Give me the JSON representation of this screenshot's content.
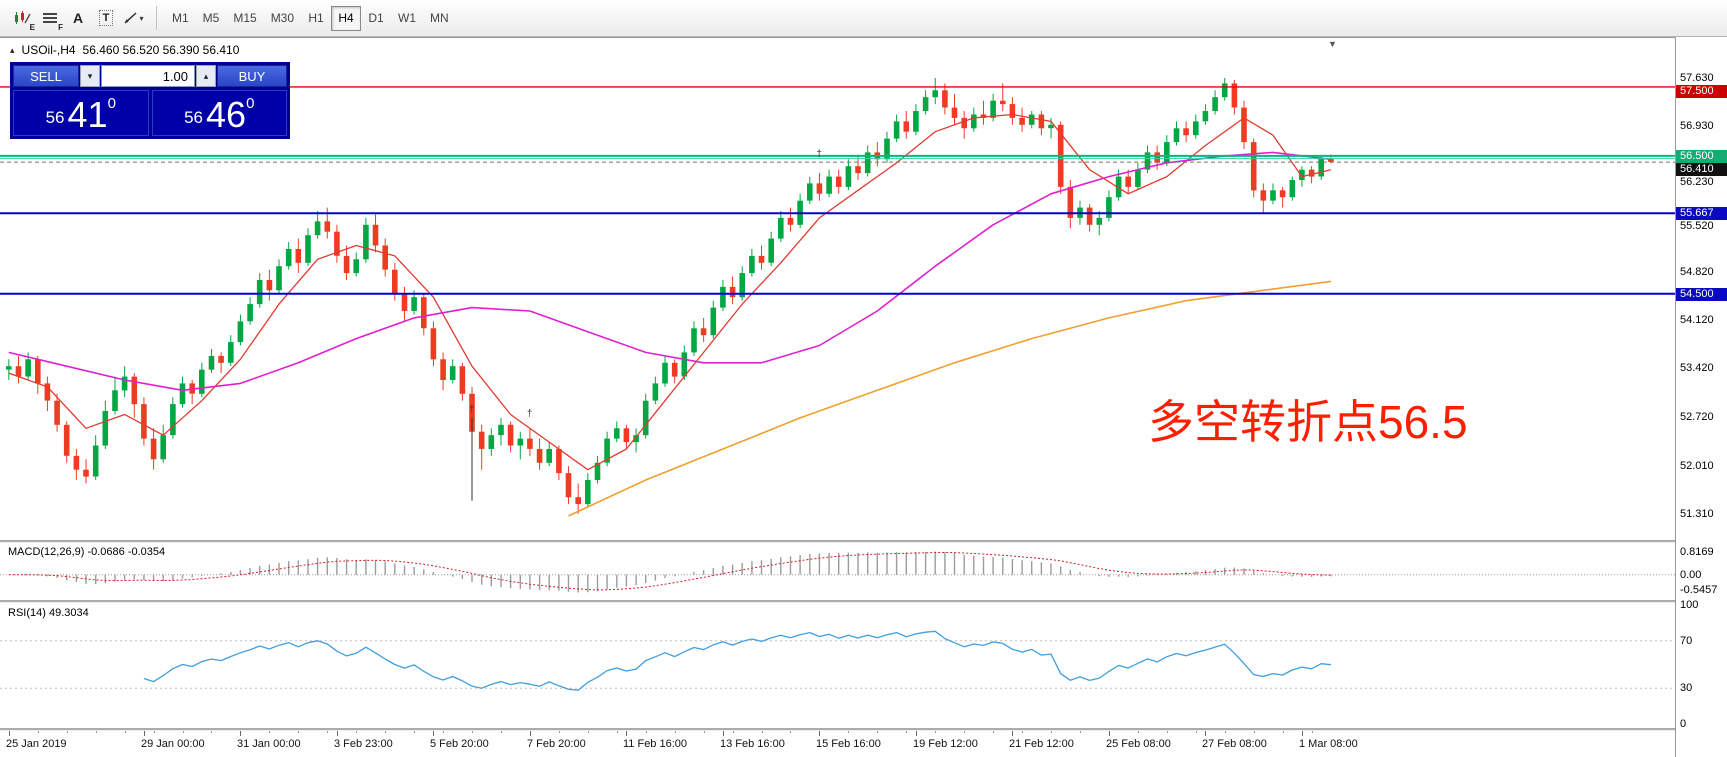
{
  "toolbar": {
    "icons": [
      {
        "name": "expert-chart-icon",
        "type": "candles",
        "badge": "E"
      },
      {
        "name": "indicator-list-icon",
        "type": "lines",
        "badge": "F"
      },
      {
        "name": "text-label-icon",
        "type": "letter",
        "glyph": "A"
      },
      {
        "name": "text-box-icon",
        "type": "boxed",
        "glyph": "T"
      },
      {
        "name": "line-tools-icon",
        "type": "trend",
        "caret": "▾"
      }
    ],
    "timeframes": [
      "M1",
      "M5",
      "M15",
      "M30",
      "H1",
      "H4",
      "D1",
      "W1",
      "MN"
    ],
    "active_timeframe": "H4"
  },
  "chart_header": {
    "toggle_glyph": "▴",
    "symbol": "USOil-,H4",
    "ohlc": "56.460 56.520 56.390 56.410"
  },
  "trade_panel": {
    "sell_label": "SELL",
    "buy_label": "BUY",
    "volume": "1.00",
    "down_glyph": "▾",
    "up_glyph": "▴",
    "bid": {
      "main": "56",
      "pips": "41",
      "sub": "0"
    },
    "ask": {
      "main": "56",
      "pips": "46",
      "sub": "0"
    }
  },
  "annotation": {
    "text": "多空转折点56.5",
    "color": "#ff1e00"
  },
  "indicators": {
    "macd_label": "MACD(12,26,9) -0.0686 -0.0354",
    "rsi_label": "RSI(14) 49.3034"
  },
  "misc": {
    "scroll_marker": "▼"
  },
  "price_scale": {
    "main": [
      {
        "text": "57.630"
      },
      {
        "text": "57.500",
        "bg": "#cc0000"
      },
      {
        "text": "56.930"
      },
      {
        "text": "56.500",
        "bg": "#15ab73"
      },
      {
        "text": "56.410",
        "bg": "#111111"
      },
      {
        "text": "56.230"
      },
      {
        "text": "55.667",
        "bg": "#0a0ac0"
      },
      {
        "text": "55.520"
      },
      {
        "text": "54.820"
      },
      {
        "text": "54.500",
        "bg": "#0a0ac0"
      },
      {
        "text": "54.120"
      },
      {
        "text": "53.420"
      },
      {
        "text": "52.720"
      },
      {
        "text": "52.010"
      },
      {
        "text": "51.310"
      }
    ],
    "macd": [
      "0.8169",
      "0.00",
      "-0.5457"
    ],
    "rsi": [
      "100",
      "70",
      "30",
      "0"
    ]
  },
  "chart_data": {
    "type": "candlestick",
    "symbol": "USOil-",
    "period": "H4",
    "up_color": "#00a843",
    "down_color": "#ee3c23",
    "price_axis": {
      "max": 58.18,
      "min": 50.93
    },
    "candle_width": 9.65,
    "left_pad": 4,
    "candles": [
      [
        53.4,
        53.55,
        53.25,
        53.45
      ],
      [
        53.45,
        53.6,
        53.2,
        53.3
      ],
      [
        53.3,
        53.65,
        53.25,
        53.55
      ],
      [
        53.55,
        53.6,
        53.05,
        53.2
      ],
      [
        53.2,
        53.3,
        52.8,
        52.95
      ],
      [
        52.95,
        53.05,
        52.5,
        52.6
      ],
      [
        52.6,
        52.65,
        52.05,
        52.15
      ],
      [
        52.15,
        52.25,
        51.8,
        51.95
      ],
      [
        51.95,
        52.1,
        51.75,
        51.85
      ],
      [
        51.85,
        52.45,
        51.8,
        52.3
      ],
      [
        52.3,
        52.95,
        52.25,
        52.8
      ],
      [
        52.8,
        53.3,
        52.75,
        53.1
      ],
      [
        53.1,
        53.45,
        53.0,
        53.3
      ],
      [
        53.3,
        53.35,
        52.7,
        52.9
      ],
      [
        52.9,
        53.0,
        52.3,
        52.4
      ],
      [
        52.4,
        52.55,
        51.95,
        52.1
      ],
      [
        52.1,
        52.6,
        52.05,
        52.45
      ],
      [
        52.45,
        53.0,
        52.4,
        52.9
      ],
      [
        52.9,
        53.3,
        52.85,
        53.2
      ],
      [
        53.2,
        53.25,
        52.9,
        53.05
      ],
      [
        53.05,
        53.5,
        53.0,
        53.4
      ],
      [
        53.4,
        53.7,
        53.35,
        53.6
      ],
      [
        53.6,
        53.65,
        53.35,
        53.5
      ],
      [
        53.5,
        53.9,
        53.45,
        53.8
      ],
      [
        53.8,
        54.2,
        53.75,
        54.1
      ],
      [
        54.1,
        54.45,
        54.05,
        54.35
      ],
      [
        54.35,
        54.8,
        54.3,
        54.7
      ],
      [
        54.7,
        54.85,
        54.4,
        54.55
      ],
      [
        54.55,
        55.0,
        54.5,
        54.9
      ],
      [
        54.9,
        55.25,
        54.85,
        55.15
      ],
      [
        55.15,
        55.3,
        54.8,
        54.95
      ],
      [
        54.95,
        55.45,
        54.9,
        55.35
      ],
      [
        55.35,
        55.7,
        55.3,
        55.55
      ],
      [
        55.55,
        55.75,
        55.3,
        55.4
      ],
      [
        55.4,
        55.5,
        54.95,
        55.05
      ],
      [
        55.05,
        55.2,
        54.7,
        54.8
      ],
      [
        54.8,
        55.1,
        54.75,
        55.0
      ],
      [
        55.0,
        55.6,
        54.95,
        55.5
      ],
      [
        55.5,
        55.65,
        55.1,
        55.2
      ],
      [
        55.2,
        55.3,
        54.75,
        54.85
      ],
      [
        54.85,
        54.95,
        54.4,
        54.5
      ],
      [
        54.5,
        54.6,
        54.1,
        54.25
      ],
      [
        54.25,
        54.55,
        54.2,
        54.45
      ],
      [
        54.45,
        54.5,
        53.9,
        54.0
      ],
      [
        54.0,
        54.1,
        53.45,
        53.55
      ],
      [
        53.55,
        53.65,
        53.1,
        53.25
      ],
      [
        53.25,
        53.55,
        53.2,
        53.45
      ],
      [
        53.45,
        53.5,
        52.95,
        53.05
      ],
      [
        53.05,
        53.15,
        52.4,
        52.5
      ],
      [
        52.5,
        52.6,
        51.95,
        52.25
      ],
      [
        52.25,
        52.55,
        52.15,
        52.45
      ],
      [
        52.45,
        52.7,
        52.3,
        52.6
      ],
      [
        52.6,
        52.65,
        52.2,
        52.3
      ],
      [
        52.3,
        52.5,
        52.1,
        52.4
      ],
      [
        52.4,
        52.55,
        52.15,
        52.25
      ],
      [
        52.25,
        52.4,
        51.95,
        52.05
      ],
      [
        52.05,
        52.35,
        52.0,
        52.25
      ],
      [
        52.25,
        52.3,
        51.8,
        51.9
      ],
      [
        51.9,
        52.0,
        51.45,
        51.55
      ],
      [
        51.55,
        51.75,
        51.31,
        51.45
      ],
      [
        51.45,
        51.9,
        51.4,
        51.8
      ],
      [
        51.8,
        52.15,
        51.75,
        52.05
      ],
      [
        52.05,
        52.5,
        52.0,
        52.4
      ],
      [
        52.4,
        52.65,
        52.35,
        52.55
      ],
      [
        52.55,
        52.6,
        52.25,
        52.35
      ],
      [
        52.35,
        52.55,
        52.2,
        52.45
      ],
      [
        52.45,
        53.05,
        52.4,
        52.95
      ],
      [
        52.95,
        53.3,
        52.9,
        53.2
      ],
      [
        53.2,
        53.6,
        53.15,
        53.5
      ],
      [
        53.5,
        53.55,
        53.2,
        53.3
      ],
      [
        53.3,
        53.75,
        53.25,
        53.65
      ],
      [
        53.65,
        54.1,
        53.6,
        54.0
      ],
      [
        54.0,
        54.15,
        53.8,
        53.9
      ],
      [
        53.9,
        54.4,
        53.85,
        54.3
      ],
      [
        54.3,
        54.7,
        54.25,
        54.6
      ],
      [
        54.6,
        54.75,
        54.35,
        54.45
      ],
      [
        54.45,
        54.9,
        54.4,
        54.8
      ],
      [
        54.8,
        55.15,
        54.75,
        55.05
      ],
      [
        55.05,
        55.2,
        54.85,
        54.95
      ],
      [
        54.95,
        55.4,
        54.9,
        55.3
      ],
      [
        55.3,
        55.7,
        55.25,
        55.6
      ],
      [
        55.6,
        55.75,
        55.4,
        55.5
      ],
      [
        55.5,
        55.95,
        55.45,
        55.85
      ],
      [
        55.85,
        56.2,
        55.8,
        56.1
      ],
      [
        56.1,
        56.25,
        55.85,
        55.95
      ],
      [
        55.95,
        56.3,
        55.9,
        56.2
      ],
      [
        56.2,
        56.3,
        55.95,
        56.05
      ],
      [
        56.05,
        56.45,
        56.0,
        56.35
      ],
      [
        56.35,
        56.5,
        56.15,
        56.25
      ],
      [
        56.25,
        56.65,
        56.2,
        56.55
      ],
      [
        56.55,
        56.7,
        56.35,
        56.45
      ],
      [
        56.45,
        56.85,
        56.4,
        56.75
      ],
      [
        56.75,
        57.1,
        56.7,
        57.0
      ],
      [
        57.0,
        57.15,
        56.75,
        56.85
      ],
      [
        56.85,
        57.25,
        56.8,
        57.15
      ],
      [
        57.15,
        57.45,
        57.1,
        57.35
      ],
      [
        57.35,
        57.63,
        57.25,
        57.45
      ],
      [
        57.45,
        57.55,
        57.1,
        57.2
      ],
      [
        57.2,
        57.4,
        56.95,
        57.05
      ],
      [
        57.05,
        57.15,
        56.75,
        56.9
      ],
      [
        56.9,
        57.2,
        56.85,
        57.1
      ],
      [
        57.1,
        57.3,
        56.95,
        57.05
      ],
      [
        57.05,
        57.4,
        57.0,
        57.3
      ],
      [
        57.3,
        57.55,
        57.15,
        57.25
      ],
      [
        57.25,
        57.35,
        56.95,
        57.05
      ],
      [
        57.05,
        57.2,
        56.85,
        56.95
      ],
      [
        56.95,
        57.15,
        56.9,
        57.1
      ],
      [
        57.1,
        57.15,
        56.8,
        56.9
      ],
      [
        56.9,
        57.05,
        56.75,
        56.95
      ],
      [
        56.95,
        57.0,
        55.95,
        56.05
      ],
      [
        56.05,
        56.15,
        55.45,
        55.6
      ],
      [
        55.6,
        55.85,
        55.5,
        55.75
      ],
      [
        55.75,
        55.8,
        55.4,
        55.5
      ],
      [
        55.5,
        55.7,
        55.35,
        55.6
      ],
      [
        55.6,
        56.0,
        55.55,
        55.9
      ],
      [
        55.9,
        56.3,
        55.85,
        56.2
      ],
      [
        56.2,
        56.3,
        55.95,
        56.05
      ],
      [
        56.05,
        56.4,
        56.0,
        56.3
      ],
      [
        56.3,
        56.65,
        56.25,
        56.55
      ],
      [
        56.55,
        56.65,
        56.3,
        56.4
      ],
      [
        56.4,
        56.8,
        56.35,
        56.7
      ],
      [
        56.7,
        57.0,
        56.65,
        56.9
      ],
      [
        56.9,
        57.0,
        56.7,
        56.8
      ],
      [
        56.8,
        57.1,
        56.75,
        57.0
      ],
      [
        57.0,
        57.25,
        56.95,
        57.15
      ],
      [
        57.15,
        57.45,
        57.1,
        57.35
      ],
      [
        57.35,
        57.63,
        57.3,
        57.55
      ],
      [
        57.55,
        57.6,
        57.1,
        57.2
      ],
      [
        57.2,
        57.3,
        56.6,
        56.7
      ],
      [
        56.7,
        56.75,
        55.9,
        56.0
      ],
      [
        56.0,
        56.1,
        55.67,
        55.85
      ],
      [
        55.85,
        56.1,
        55.8,
        56.0
      ],
      [
        56.0,
        56.05,
        55.75,
        55.9
      ],
      [
        55.9,
        56.2,
        55.85,
        56.15
      ],
      [
        56.15,
        56.35,
        56.05,
        56.3
      ],
      [
        56.3,
        56.35,
        56.1,
        56.2
      ],
      [
        56.2,
        56.5,
        56.15,
        56.46
      ],
      [
        56.46,
        56.52,
        56.39,
        56.41
      ]
    ],
    "ma_lines": [
      {
        "name": "fast-red",
        "color": "#e23a2e",
        "width": 1.3,
        "points": [
          [
            0,
            53.35
          ],
          [
            4,
            53.15
          ],
          [
            8,
            52.55
          ],
          [
            12,
            52.75
          ],
          [
            16,
            52.45
          ],
          [
            20,
            52.95
          ],
          [
            24,
            53.55
          ],
          [
            28,
            54.35
          ],
          [
            32,
            55.0
          ],
          [
            36,
            55.2
          ],
          [
            40,
            55.05
          ],
          [
            44,
            54.45
          ],
          [
            48,
            53.45
          ],
          [
            52,
            52.75
          ],
          [
            56,
            52.35
          ],
          [
            60,
            51.95
          ],
          [
            64,
            52.25
          ],
          [
            68,
            52.95
          ],
          [
            72,
            53.65
          ],
          [
            76,
            54.35
          ],
          [
            80,
            54.95
          ],
          [
            84,
            55.6
          ],
          [
            88,
            56.0
          ],
          [
            92,
            56.4
          ],
          [
            96,
            56.85
          ],
          [
            100,
            57.05
          ],
          [
            104,
            57.1
          ],
          [
            108,
            57.0
          ],
          [
            112,
            56.3
          ],
          [
            116,
            55.95
          ],
          [
            120,
            56.2
          ],
          [
            124,
            56.65
          ],
          [
            128,
            57.05
          ],
          [
            131,
            56.8
          ],
          [
            134,
            56.2
          ],
          [
            137,
            56.3
          ]
        ]
      },
      {
        "name": "medium-magenta",
        "color": "#e020d0",
        "width": 1.6,
        "points": [
          [
            0,
            53.65
          ],
          [
            6,
            53.45
          ],
          [
            12,
            53.25
          ],
          [
            18,
            53.1
          ],
          [
            24,
            53.2
          ],
          [
            30,
            53.5
          ],
          [
            36,
            53.85
          ],
          [
            42,
            54.15
          ],
          [
            48,
            54.3
          ],
          [
            54,
            54.25
          ],
          [
            60,
            53.95
          ],
          [
            66,
            53.65
          ],
          [
            72,
            53.5
          ],
          [
            78,
            53.5
          ],
          [
            84,
            53.75
          ],
          [
            90,
            54.25
          ],
          [
            96,
            54.9
          ],
          [
            102,
            55.5
          ],
          [
            108,
            55.95
          ],
          [
            114,
            56.2
          ],
          [
            120,
            56.4
          ],
          [
            126,
            56.5
          ],
          [
            131,
            56.55
          ],
          [
            137,
            56.45
          ]
        ]
      },
      {
        "name": "slow-orange",
        "color": "#f0a030",
        "width": 1.6,
        "points": [
          [
            58,
            51.28
          ],
          [
            66,
            51.8
          ],
          [
            74,
            52.25
          ],
          [
            82,
            52.7
          ],
          [
            90,
            53.1
          ],
          [
            98,
            53.5
          ],
          [
            106,
            53.85
          ],
          [
            114,
            54.15
          ],
          [
            122,
            54.4
          ],
          [
            130,
            54.55
          ],
          [
            137,
            54.68
          ]
        ]
      }
    ],
    "hlines": [
      {
        "price": 57.5,
        "color": "#e00000",
        "width": 1.4
      },
      {
        "price": 56.5,
        "color": "#00b87c",
        "width": 2
      },
      {
        "price": 56.46,
        "color": "#37d0a0",
        "width": 1
      },
      {
        "price": 56.41,
        "color": "#6a7a6a",
        "width": 1,
        "dash": true
      },
      {
        "price": 55.667,
        "color": "#0202cc",
        "width": 2
      },
      {
        "price": 54.5,
        "color": "#0202cc",
        "width": 2
      }
    ],
    "vline": {
      "i": 48,
      "from": 52.7,
      "to": 51.5
    },
    "markers": [
      {
        "i": 48,
        "price": 52.78,
        "glyph": "†"
      },
      {
        "i": 54,
        "price": 52.72,
        "glyph": "†"
      },
      {
        "i": 84,
        "price": 56.48,
        "glyph": "†"
      }
    ],
    "macd": {
      "fast": 12,
      "slow": 26,
      "signal": 9,
      "max": 1.18,
      "min": -0.91,
      "hist_color": "#9b9b9b",
      "signal_color": "#d02020"
    },
    "rsi": {
      "period": 14,
      "max": 102.5,
      "min": -3.4,
      "color": "#3f9fdf",
      "levels": [
        70,
        30
      ],
      "level_color": "#bdbdbd"
    },
    "time_labels": [
      {
        "label": "25 Jan 2019",
        "i": 0
      },
      {
        "label": "29 Jan 00:00",
        "i": 14
      },
      {
        "label": "31 Jan 00:00",
        "i": 24
      },
      {
        "label": "3 Feb 23:00",
        "i": 34
      },
      {
        "label": "5 Feb 20:00",
        "i": 44
      },
      {
        "label": "7 Feb 20:00",
        "i": 54
      },
      {
        "label": "11 Feb 16:00",
        "i": 64
      },
      {
        "label": "13 Feb 16:00",
        "i": 74
      },
      {
        "label": "15 Feb 16:00",
        "i": 84
      },
      {
        "label": "19 Feb 12:00",
        "i": 94
      },
      {
        "label": "21 Feb 12:00",
        "i": 104
      },
      {
        "label": "25 Feb 08:00",
        "i": 114
      },
      {
        "label": "27 Feb 08:00",
        "i": 124
      },
      {
        "label": "1 Mar 08:00",
        "i": 134
      }
    ]
  }
}
